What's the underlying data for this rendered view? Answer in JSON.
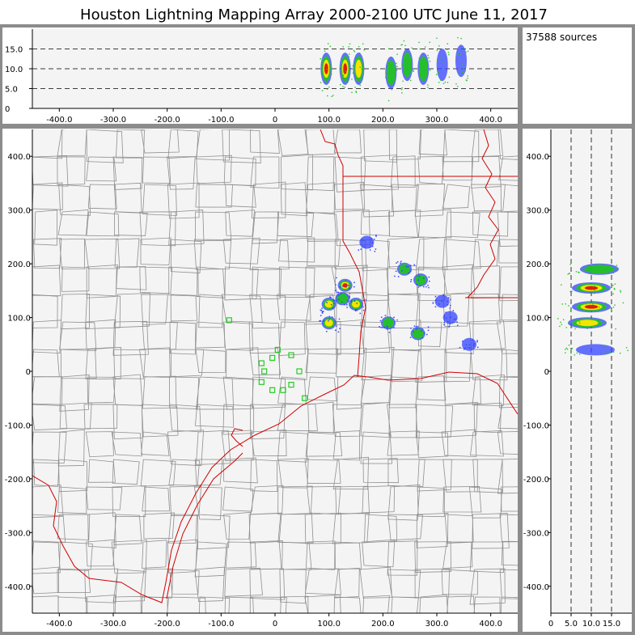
{
  "title": "Houston Lightning Mapping Array   2000-2100 UTC  June 11, 2017",
  "source_count": "37588 sources",
  "colors": {
    "frame": "#8c8c8c",
    "panel_bg": "#f4f4f4",
    "county_lines": "#8f8f8f",
    "state_coast_lines": "#d00000",
    "station_markers": "#22cc22",
    "density_low": "#3344ff",
    "density_mid": "#22c322",
    "density_high": "#ffe600",
    "density_max": "#e01010"
  },
  "chart_data": {
    "type": "scatter",
    "plan_view": {
      "x_ticks": [
        "-400.0",
        "-300.0",
        "-200.0",
        "-100.0",
        "0",
        "100.0",
        "200.0",
        "300.0",
        "400.0"
      ],
      "y_ticks": [
        "400.0",
        "300.0",
        "200.0",
        "100.0",
        "0",
        "-100.0",
        "-200.0",
        "-300.0",
        "-400.0"
      ],
      "xlim": [
        -450,
        450
      ],
      "ylim": [
        -450,
        450
      ]
    },
    "east_west_altitude": {
      "y_ticks": [
        "15.0",
        "10.0",
        "5.0",
        "0"
      ],
      "ylim": [
        0,
        20
      ],
      "dashed_levels": [
        5,
        10,
        15
      ]
    },
    "altitude_north_south": {
      "x_ticks": [
        "0",
        "5.0",
        "10.0",
        "15.0"
      ],
      "xlim": [
        0,
        20
      ],
      "dashed_levels": [
        5,
        10,
        15
      ]
    },
    "stations": [
      [
        -85,
        95
      ],
      [
        -25,
        15
      ],
      [
        -5,
        25
      ],
      [
        5,
        40
      ],
      [
        30,
        30
      ],
      [
        -25,
        -20
      ],
      [
        -20,
        0
      ],
      [
        -5,
        -35
      ],
      [
        15,
        -35
      ],
      [
        30,
        -25
      ],
      [
        45,
        0
      ],
      [
        55,
        -50
      ]
    ],
    "storm_cells": [
      {
        "x": 130,
        "y": 160,
        "intensity": "max"
      },
      {
        "x": 100,
        "y": 125,
        "intensity": "high"
      },
      {
        "x": 150,
        "y": 125,
        "intensity": "high"
      },
      {
        "x": 100,
        "y": 90,
        "intensity": "high"
      },
      {
        "x": 125,
        "y": 135,
        "intensity": "mid"
      },
      {
        "x": 240,
        "y": 190,
        "intensity": "mid"
      },
      {
        "x": 270,
        "y": 170,
        "intensity": "mid"
      },
      {
        "x": 210,
        "y": 90,
        "intensity": "mid"
      },
      {
        "x": 265,
        "y": 70,
        "intensity": "mid"
      },
      {
        "x": 310,
        "y": 130,
        "intensity": "low"
      },
      {
        "x": 325,
        "y": 100,
        "intensity": "low"
      },
      {
        "x": 360,
        "y": 50,
        "intensity": "low"
      },
      {
        "x": 170,
        "y": 240,
        "intensity": "low"
      }
    ],
    "altitude_columns": [
      {
        "x": 95,
        "alt": 10,
        "intensity": "max"
      },
      {
        "x": 130,
        "alt": 10,
        "intensity": "max"
      },
      {
        "x": 155,
        "alt": 10,
        "intensity": "high"
      },
      {
        "x": 215,
        "alt": 9,
        "intensity": "mid"
      },
      {
        "x": 245,
        "alt": 11,
        "intensity": "mid"
      },
      {
        "x": 275,
        "alt": 10,
        "intensity": "mid"
      },
      {
        "x": 310,
        "alt": 11,
        "intensity": "low"
      },
      {
        "x": 345,
        "alt": 12,
        "intensity": "low"
      }
    ],
    "altitude_layers": [
      {
        "y": 190,
        "alt": 12,
        "intensity": "mid"
      },
      {
        "y": 155,
        "alt": 10,
        "intensity": "max"
      },
      {
        "y": 120,
        "alt": 10,
        "intensity": "max"
      },
      {
        "y": 90,
        "alt": 9,
        "intensity": "high"
      },
      {
        "y": 40,
        "alt": 11,
        "intensity": "low"
      }
    ]
  }
}
